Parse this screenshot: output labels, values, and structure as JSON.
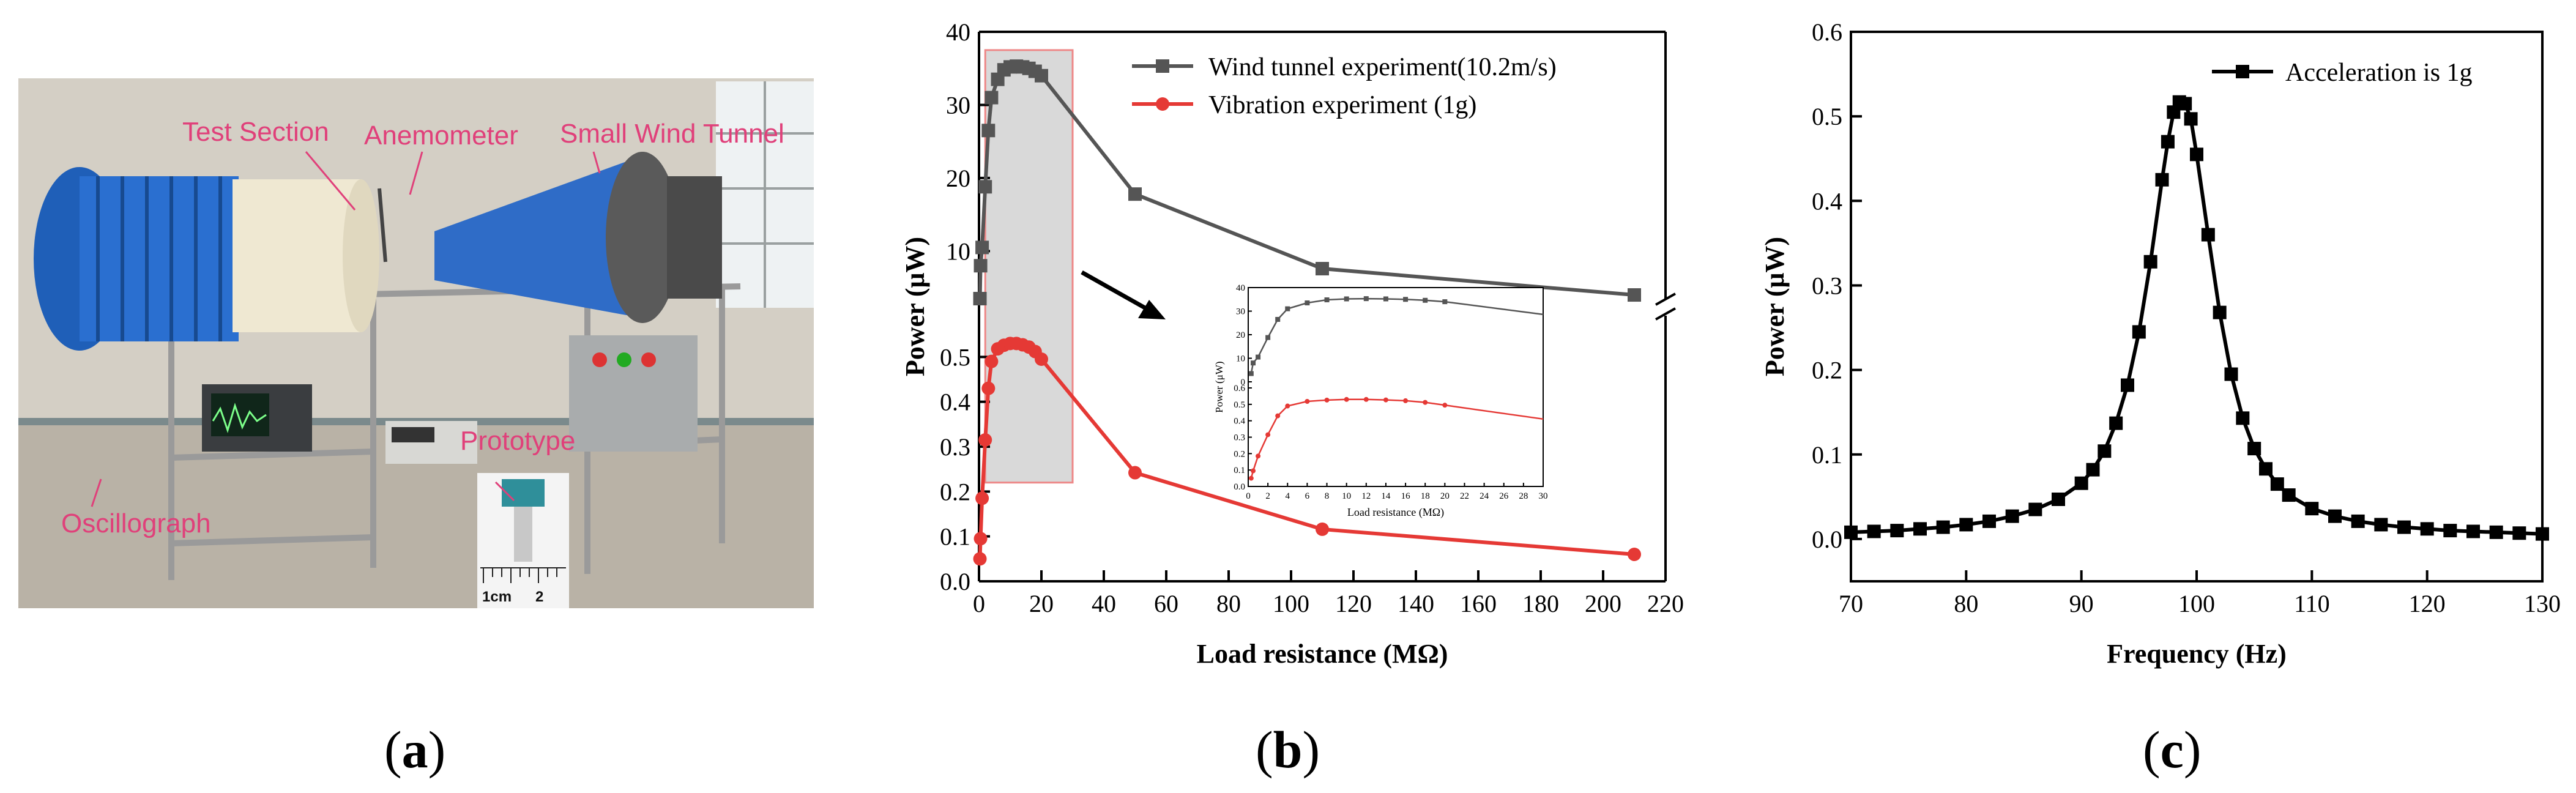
{
  "panels": {
    "a": {
      "label": "a"
    },
    "b": {
      "label": "b"
    },
    "c": {
      "label": "c"
    }
  },
  "photo": {
    "labels": {
      "test_section": "Test Section",
      "anemometer": "Anemometer",
      "small_wind_tunnel": "Small Wind Tunnel",
      "oscillograph": "Oscillograph",
      "prototype": "Prototype",
      "ruler_1cm": "1cm",
      "ruler_2": "2"
    },
    "colors": {
      "label": "#e0407a"
    }
  },
  "chart_data": [
    {
      "type": "line",
      "panel": "b",
      "title": "",
      "xlabel": "Load resistance (MΩ)",
      "ylabel": "Power (μW)",
      "xlim": [
        0,
        220
      ],
      "x_ticks": [
        "0",
        "20",
        "40",
        "60",
        "80",
        "100",
        "120",
        "140",
        "160",
        "180",
        "200",
        "220"
      ],
      "broken_y_axis": true,
      "upper_ylim": [
        3,
        40
      ],
      "upper_ticks": [
        "10",
        "20",
        "30",
        "40"
      ],
      "lower_ylim": [
        0,
        0.6
      ],
      "lower_ticks": [
        "0.0",
        "0.1",
        "0.2",
        "0.3",
        "0.4",
        "0.5"
      ],
      "legend": "top-right",
      "highlight_region": {
        "x": [
          2,
          30
        ]
      },
      "series": [
        {
          "name": "Wind tunnel experiment(10.2m/s)",
          "color": "#555555",
          "marker": "square",
          "axis": "upper",
          "x": [
            0.3,
            0.5,
            1,
            2,
            3,
            4,
            6,
            8,
            10,
            12,
            14,
            16,
            18,
            20,
            50,
            110,
            210
          ],
          "y": [
            3.5,
            8,
            10.5,
            18.8,
            26.5,
            31,
            33.5,
            34.8,
            35.2,
            35.3,
            35.2,
            35,
            34.6,
            34,
            17.8,
            7.6,
            4.0
          ]
        },
        {
          "name": "Vibration experiment (1g)",
          "color": "#e53935",
          "marker": "circle",
          "axis": "lower",
          "x": [
            0.3,
            0.5,
            1,
            2,
            3,
            4,
            6,
            8,
            10,
            12,
            14,
            16,
            18,
            20,
            50,
            110,
            210
          ],
          "y": [
            0.05,
            0.095,
            0.185,
            0.315,
            0.43,
            0.49,
            0.518,
            0.526,
            0.53,
            0.53,
            0.527,
            0.522,
            0.512,
            0.495,
            0.242,
            0.116,
            0.06
          ]
        }
      ],
      "inset": {
        "xlabel": "Load resistance (MΩ)",
        "ylabel": "Power (μW)",
        "xlim": [
          0,
          30
        ],
        "x_ticks": [
          "0",
          "2",
          "4",
          "6",
          "8",
          "10",
          "12",
          "14",
          "16",
          "18",
          "20",
          "22",
          "24",
          "26",
          "28",
          "30"
        ],
        "upper_ylim": [
          0,
          40
        ],
        "upper_ticks": [
          "0",
          "10",
          "20",
          "30",
          "40"
        ],
        "lower_ylim": [
          0,
          0.6
        ],
        "lower_ticks": [
          "0.0",
          "0.1",
          "0.2",
          "0.3",
          "0.4",
          "0.5",
          "0.6"
        ]
      }
    },
    {
      "type": "line",
      "panel": "c",
      "title": "",
      "xlabel": "Frequency (Hz)",
      "ylabel": "Power (μW)",
      "xlim": [
        70,
        130
      ],
      "ylim": [
        -0.05,
        0.6
      ],
      "x_ticks": [
        "70",
        "80",
        "90",
        "100",
        "110",
        "120",
        "130"
      ],
      "y_ticks": [
        "0.0",
        "0.1",
        "0.2",
        "0.3",
        "0.4",
        "0.5",
        "0.6"
      ],
      "legend": "top-right",
      "series": [
        {
          "name": "Acceleration is 1g",
          "color": "#000000",
          "marker": "square",
          "x": [
            70,
            72,
            74,
            76,
            78,
            80,
            82,
            84,
            86,
            88,
            90,
            91,
            92,
            93,
            94,
            95,
            96,
            97,
            97.5,
            98,
            98.5,
            99,
            99.5,
            100,
            101,
            102,
            103,
            104,
            105,
            106,
            107,
            108,
            110,
            112,
            114,
            116,
            118,
            120,
            122,
            124,
            126,
            128,
            130
          ],
          "y": [
            0.008,
            0.009,
            0.01,
            0.012,
            0.014,
            0.017,
            0.021,
            0.027,
            0.035,
            0.047,
            0.066,
            0.082,
            0.104,
            0.137,
            0.182,
            0.245,
            0.328,
            0.425,
            0.47,
            0.505,
            0.517,
            0.515,
            0.497,
            0.455,
            0.36,
            0.268,
            0.195,
            0.143,
            0.107,
            0.083,
            0.065,
            0.052,
            0.036,
            0.027,
            0.021,
            0.017,
            0.014,
            0.012,
            0.01,
            0.009,
            0.008,
            0.007,
            0.006
          ]
        }
      ]
    }
  ]
}
